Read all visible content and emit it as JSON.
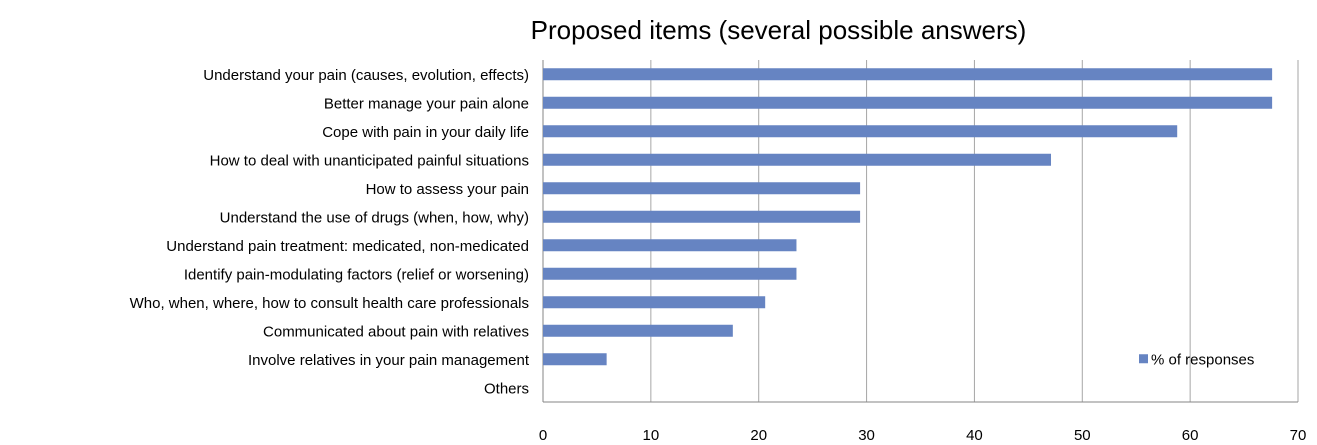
{
  "chart_data": {
    "type": "bar",
    "orientation": "horizontal",
    "title": "Proposed items (several possible answers)",
    "xlabel": "",
    "ylabel": "",
    "categories": [
      "Understand your pain (causes, evolution, effects)",
      "Better manage your pain alone",
      "Cope with pain in your daily life",
      "How to deal with unanticipated painful situations",
      "How to assess your pain",
      "Understand the use of drugs (when, how, why)",
      "Understand pain treatment: medicated, non-medicated",
      "Identify pain-modulating factors (relief or worsening)",
      "Who, when, where, how to consult health care professionals",
      "Communicated about pain with relatives",
      "Involve relatives in your pain management",
      "Others"
    ],
    "series": [
      {
        "name": "% of responses",
        "values": [
          67.6,
          67.6,
          58.8,
          47.1,
          29.4,
          29.4,
          23.5,
          23.5,
          20.6,
          17.6,
          5.9,
          0
        ]
      }
    ],
    "xlim": [
      0,
      70
    ],
    "xticks": [
      0,
      10,
      20,
      30,
      40,
      50,
      60,
      70
    ],
    "grid": "vertical",
    "legend_position": "bottom-right",
    "colors": {
      "bar": "#6684c2",
      "grid": "#a6a6a6",
      "axis": "#868686",
      "text": "#000000"
    }
  }
}
